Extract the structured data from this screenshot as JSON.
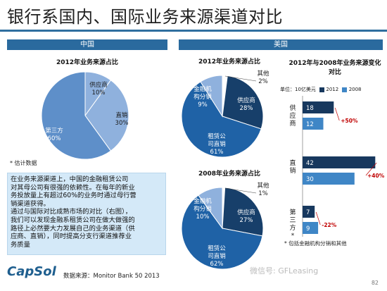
{
  "page": {
    "title": "银行系国内、国际业务来源渠道对比",
    "china_header": "中国",
    "us_header": "美国",
    "estimate_note": "* 估计数据",
    "textbox_lines": [
      "在业务来源渠道上，中国的金融租赁公司",
      "对其母公司有很强的依赖性。在每年的新业",
      "务投放量上有超过60%的业务时通过母行营",
      "销渠道获得。",
      "通过与国际对比成熟市场的对比（右图），",
      "我们可以发现金融系租赁公司在做大做强的",
      "路径上必然要大力发展自己的业务渠道（供",
      "应商、直销），同时提高分支行渠道推荐业",
      "务质量"
    ],
    "logo": "CapSol",
    "source": "数据来源：Monitor Bank 50 2013",
    "bar_footnote": "* 包括金融机构分销和其他",
    "watermark": "微信号: GFLeasing",
    "page_number": "82"
  },
  "colors": {
    "title_rule": "#2f6f9f",
    "header_bg": "#2a6a9e",
    "pie_light": "#8fb1dd",
    "pie_mid": "#1f62a6",
    "pie_dark": "#173f6a",
    "bar_2012": "#17385e",
    "bar_2008": "#3f86c6",
    "growth_text": "#c00000"
  },
  "chart_data": [
    {
      "type": "pie",
      "title": "2012年业务来源占比",
      "slices": [
        {
          "label": "供应商",
          "value": 10,
          "value_label": "10%",
          "color": "#8fb1dd"
        },
        {
          "label": "直销",
          "value": 30,
          "value_label": "30%",
          "color": "#8fb1dd"
        },
        {
          "label": "第三方",
          "value": 60,
          "value_label": "60%",
          "color": "#5e8fc9"
        }
      ]
    },
    {
      "type": "pie",
      "title": "2012年业务来源占比",
      "slices": [
        {
          "label": "其他",
          "value": 2,
          "value_label": "2%",
          "color": "#ffffff"
        },
        {
          "label": "供应商",
          "value": 28,
          "value_label": "28%",
          "color": "#173f6a"
        },
        {
          "label": "租赁公司直销",
          "value": 61,
          "value_label": "61%",
          "color": "#1f62a6"
        },
        {
          "label": "金融机构分销",
          "value": 9,
          "value_label": "9%",
          "color": "#8fb1dd"
        }
      ]
    },
    {
      "type": "pie",
      "title": "2008年业务来源占比",
      "slices": [
        {
          "label": "其他",
          "value": 1,
          "value_label": "1%",
          "color": "#ffffff"
        },
        {
          "label": "供应商",
          "value": 27,
          "value_label": "27%",
          "color": "#173f6a"
        },
        {
          "label": "租赁公司直销",
          "value": 62,
          "value_label": "62%",
          "color": "#1f62a6"
        },
        {
          "label": "金融机构分销",
          "value": 10,
          "value_label": "10%",
          "color": "#8fb1dd"
        }
      ]
    },
    {
      "type": "bar",
      "orientation": "horizontal",
      "title": "2012年与2008年业务来源变化对比",
      "unit_label": "单位：10亿美元",
      "categories": [
        "供应商",
        "直销",
        "第三方*"
      ],
      "series": [
        {
          "name": "2012",
          "values": [
            18,
            42,
            7
          ]
        },
        {
          "name": "2008",
          "values": [
            12,
            30,
            9
          ]
        }
      ],
      "changes": [
        "+50%",
        "+40%",
        "-22%"
      ],
      "xlim": [
        0,
        48
      ]
    }
  ]
}
